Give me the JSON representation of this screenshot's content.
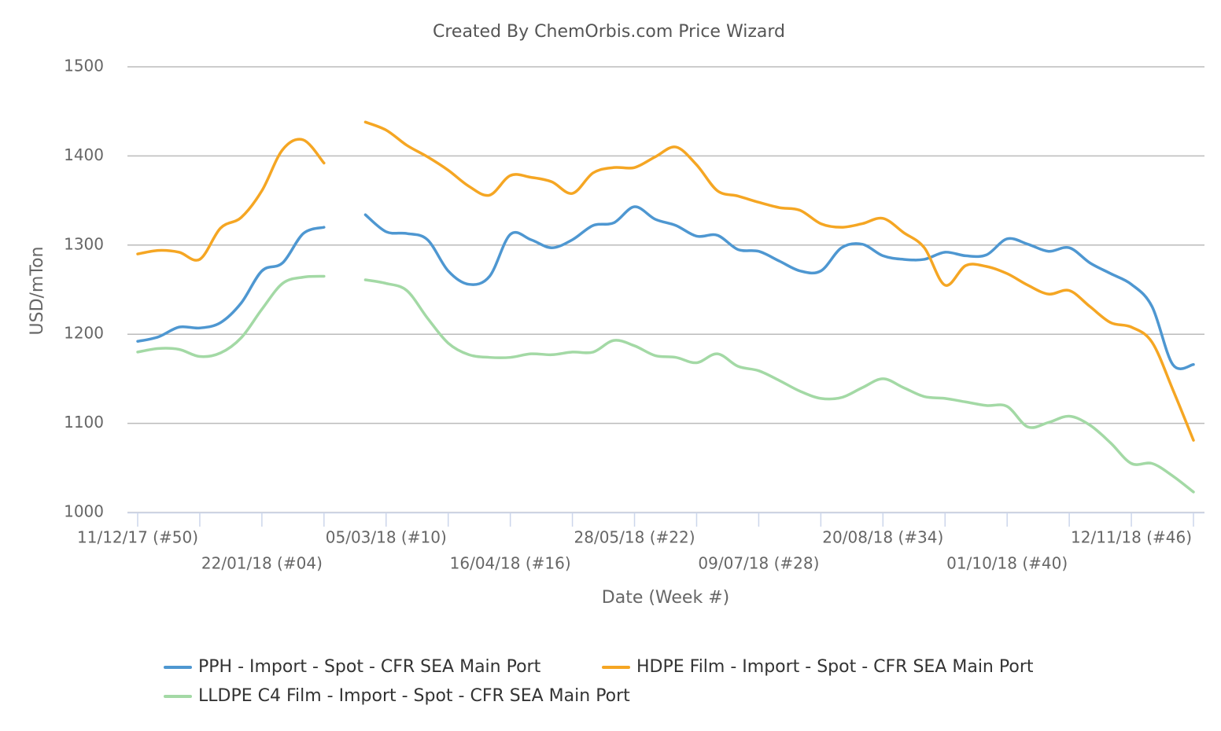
{
  "chart_data": {
    "type": "line",
    "title": "Created By ChemOrbis.com Price Wizard",
    "ylabel": "USD/mTon",
    "xlabel": "Date (Week #)",
    "categories": [
      "11/12/17 (#50)",
      null,
      null,
      null,
      null,
      null,
      "22/01/18 (#04)",
      null,
      null,
      null,
      null,
      null,
      "05/03/18 (#10)",
      null,
      null,
      null,
      null,
      null,
      "16/04/18 (#16)",
      null,
      null,
      null,
      null,
      null,
      "28/05/18 (#22)",
      null,
      null,
      null,
      null,
      null,
      "09/07/18 (#28)",
      null,
      null,
      null,
      null,
      null,
      "20/08/18 (#34)",
      null,
      null,
      null,
      null,
      null,
      "01/10/18 (#40)",
      null,
      null,
      null,
      null,
      null,
      "12/11/18 (#46)",
      null,
      null,
      null
    ],
    "series": [
      {
        "name": "PPH - Import - Spot - CFR SEA Main Port",
        "color": "#4e97d1",
        "values": [
          1192,
          1197,
          1208,
          1207,
          1213,
          1235,
          1271,
          1280,
          1313,
          1320,
          null,
          1334,
          1315,
          1313,
          1306,
          1271,
          1256,
          1265,
          1312,
          1306,
          1297,
          1306,
          1322,
          1325,
          1343,
          1329,
          1322,
          1310,
          1311,
          1295,
          1293,
          1282,
          1271,
          1271,
          1297,
          1301,
          1288,
          1284,
          1284,
          1292,
          1288,
          1289,
          1307,
          1301,
          1293,
          1297,
          1280,
          1268,
          1256,
          1231,
          1166,
          1166
        ]
      },
      {
        "name": "HDPE Film - Import - Spot - CFR SEA Main Port",
        "color": "#f5a623",
        "values": [
          1290,
          1294,
          1292,
          1284,
          1319,
          1331,
          1361,
          1407,
          1418,
          1392,
          null,
          1438,
          1429,
          1412,
          1399,
          1384,
          1366,
          1356,
          1378,
          1376,
          1371,
          1358,
          1381,
          1387,
          1387,
          1399,
          1410,
          1390,
          1361,
          1355,
          1348,
          1342,
          1339,
          1324,
          1320,
          1324,
          1330,
          1314,
          1297,
          1255,
          1277,
          1276,
          1268,
          1255,
          1245,
          1249,
          1231,
          1213,
          1208,
          1191,
          1138,
          1081
        ]
      },
      {
        "name": "LLDPE C4 Film - Import - Spot - CFR SEA Main Port",
        "color": "#a3d9a5",
        "values": [
          1180,
          1184,
          1183,
          1175,
          1179,
          1196,
          1228,
          1257,
          1264,
          1265,
          null,
          1261,
          1257,
          1249,
          1218,
          1190,
          1177,
          1174,
          1174,
          1178,
          1177,
          1180,
          1180,
          1193,
          1187,
          1176,
          1174,
          1168,
          1178,
          1164,
          1159,
          1148,
          1136,
          1128,
          1129,
          1140,
          1150,
          1140,
          1130,
          1128,
          1124,
          1120,
          1119,
          1096,
          1101,
          1108,
          1098,
          1078,
          1055,
          1055,
          1041,
          1023
        ]
      }
    ],
    "ylim": [
      1000,
      1500
    ],
    "yticks": [
      1000,
      1100,
      1200,
      1300,
      1400,
      1500
    ],
    "grid": true
  }
}
